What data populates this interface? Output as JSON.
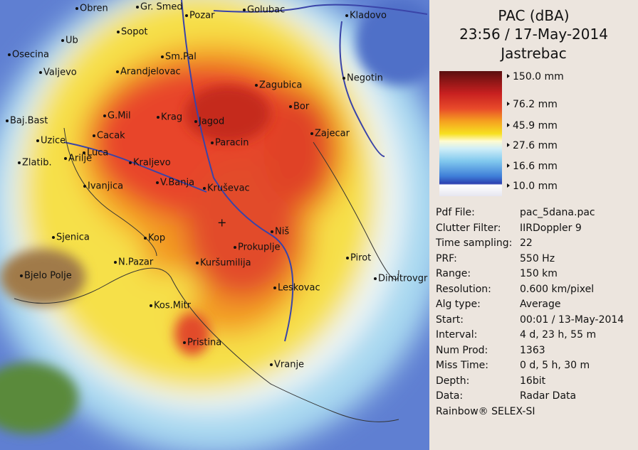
{
  "header": {
    "title": "PAC (dBA)",
    "time": "23:56 / 17-May-2014",
    "site": "Jastrebac"
  },
  "legend": {
    "labels": [
      "150.0 mm",
      "76.2 mm",
      "45.9 mm",
      "27.6 mm",
      "16.6 mm",
      "10.0 mm"
    ]
  },
  "info": {
    "rows": [
      [
        "Pdf File:",
        "pac_5dana.pac"
      ],
      [
        "Clutter Filter:",
        "IIRDoppler 9"
      ],
      [
        "Time sampling:",
        "22"
      ],
      [
        "PRF:",
        "550 Hz"
      ],
      [
        "Range:",
        "150 km"
      ],
      [
        "Resolution:",
        "0.600 km/pixel"
      ],
      [
        "Alg type:",
        "Average"
      ],
      [
        "Start:",
        "00:01 / 13-May-2014"
      ],
      [
        "Interval:",
        "4 d, 23 h, 55 m"
      ],
      [
        "Num Prod:",
        "1363"
      ],
      [
        "Miss Time:",
        "0 d, 5 h, 30 m"
      ],
      [
        "Depth:",
        "16bit"
      ],
      [
        "Data:",
        "Radar Data"
      ]
    ],
    "footer": "Rainbow® SELEX-SI"
  },
  "map": {
    "cities": [
      "Obren",
      "Gr. Smed",
      "Pozar",
      "Golubac",
      "Kladovo",
      "Ub",
      "Sopot",
      "Osecina",
      "Sm.Pal",
      "Valjevo",
      "Arandjelovac",
      "Zagubica",
      "Negotin",
      "Bor",
      "Baj.Bast",
      "G.Mil",
      "Krag",
      "Jagod",
      "Zajecar",
      "Uzice",
      "Cacak",
      "Paracin",
      "Zlatib.",
      "Arilje",
      "Luca",
      "Kraljevo",
      "Ivanjica",
      "V.Banja",
      "Kruševac",
      "Sjenica",
      "Kop",
      "Niš",
      "Prokuplje",
      "Pirot",
      "N.Pazar",
      "Kuršumilija",
      "Dimitrovgr",
      "Bjelo Polje",
      "Leskovac",
      "Kos.Mitr",
      "Pristina",
      "Vranje"
    ]
  }
}
